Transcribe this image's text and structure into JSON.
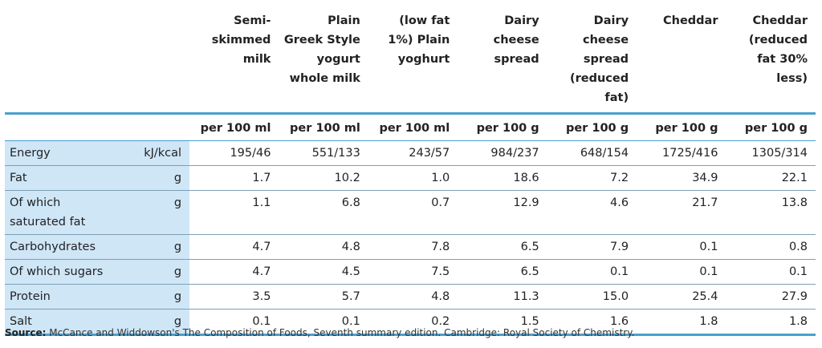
{
  "columns": [
    {
      "name": "Semi-\nskimmed\nmilk",
      "unit": "per 100 ml"
    },
    {
      "name": "Plain\nGreek Style\nyogurt\nwhole milk",
      "unit": "per 100 ml"
    },
    {
      "name": "(low fat\n1%) Plain\nyoghurt",
      "unit": "per 100 ml"
    },
    {
      "name": "Dairy\ncheese\nspread",
      "unit": "per 100 g"
    },
    {
      "name": "Dairy\ncheese\nspread\n(reduced\nfat)",
      "unit": "per 100 g"
    },
    {
      "name": "Cheddar",
      "unit": "per 100 g"
    },
    {
      "name": "Cheddar\n(reduced\nfat 30%\nless)",
      "unit": "per 100 g"
    }
  ],
  "rows": [
    {
      "label": "Energy",
      "unit": "kJ/kcal",
      "values": [
        "195/46",
        "551/133",
        "243/57",
        "984/237",
        "648/154",
        "1725/416",
        "1305/314"
      ]
    },
    {
      "label": "Fat",
      "unit": "g",
      "values": [
        "1.7",
        "10.2",
        "1.0",
        "18.6",
        "7.2",
        "34.9",
        "22.1"
      ]
    },
    {
      "label": "Of which\nsaturated fat",
      "unit": "g",
      "values": [
        "1.1",
        "6.8",
        "0.7",
        "12.9",
        "4.6",
        "21.7",
        "13.8"
      ]
    },
    {
      "label": "Carbohydrates",
      "unit": "g",
      "values": [
        "4.7",
        "4.8",
        "7.8",
        "6.5",
        "7.9",
        "0.1",
        "0.8"
      ]
    },
    {
      "label": "Of which sugars",
      "unit": "g",
      "values": [
        "4.7",
        "4.5",
        "7.5",
        "6.5",
        "0.1",
        "0.1",
        "0.1"
      ]
    },
    {
      "label": "Protein",
      "unit": "g",
      "values": [
        "3.5",
        "5.7",
        "4.8",
        "11.3",
        "15.0",
        "25.4",
        "27.9"
      ]
    },
    {
      "label": "Salt",
      "unit": "g",
      "values": [
        "0.1",
        "0.1",
        "0.2",
        "1.5",
        "1.6",
        "1.8",
        "1.8"
      ]
    }
  ],
  "source": {
    "prefix": "Source:",
    "text": "McCance and Widdowson's The Composition of Foods, Seventh summary edition. Cambridge: Royal Society of Chemistry."
  },
  "colors": {
    "accent": "#4a9fd0",
    "label_bg": "#cfe6f7"
  }
}
